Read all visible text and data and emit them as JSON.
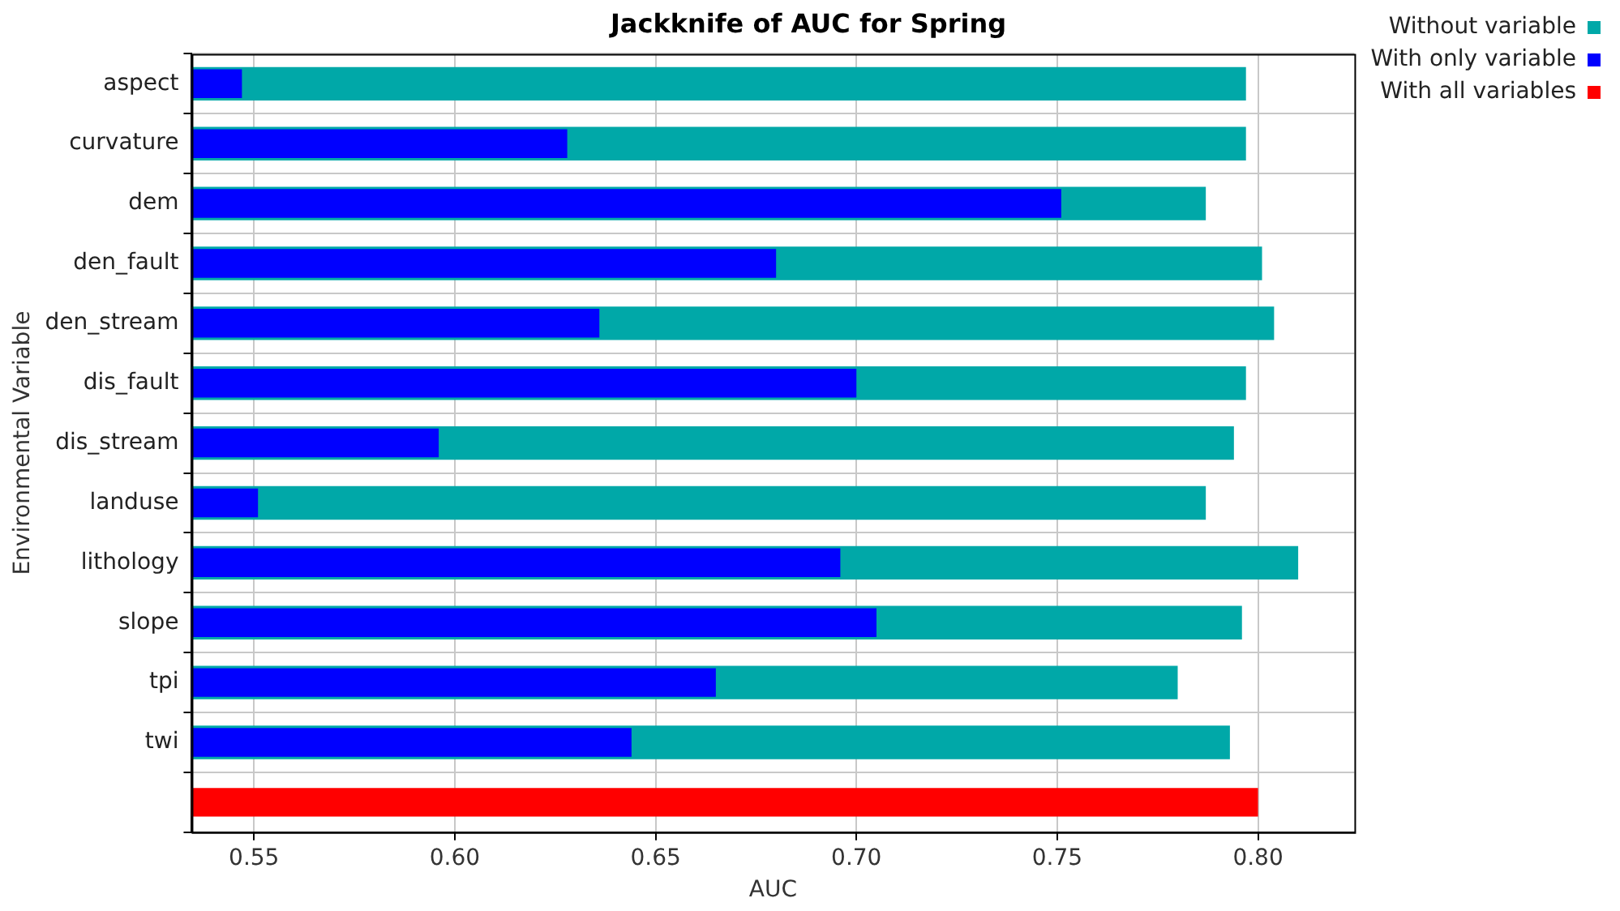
{
  "chart_data": {
    "type": "bar",
    "orientation": "horizontal",
    "title": "Jackknife of AUC for Spring",
    "xlabel": "AUC",
    "ylabel": "Environmental Variable",
    "categories": [
      "aspect",
      "curvature",
      "dem",
      "den_fault",
      "den_stream",
      "dis_fault",
      "dis_stream",
      "landuse",
      "lithology",
      "slope",
      "tpi",
      "twi",
      null
    ],
    "series": [
      {
        "name": "Without variable",
        "color": "#00a8a8",
        "values": [
          0.797,
          0.797,
          0.787,
          0.801,
          0.804,
          0.797,
          0.794,
          0.787,
          0.81,
          0.796,
          0.78,
          0.793,
          null
        ]
      },
      {
        "name": "With only variable",
        "color": "#0000ff",
        "values": [
          0.547,
          0.628,
          0.751,
          0.68,
          0.636,
          0.7,
          0.596,
          0.551,
          0.696,
          0.705,
          0.665,
          0.644,
          null
        ]
      },
      {
        "name": "With all variables",
        "color": "#ff0000",
        "values": [
          null,
          null,
          null,
          null,
          null,
          null,
          null,
          null,
          null,
          null,
          null,
          null,
          0.8
        ]
      }
    ],
    "xlim": [
      0.5345,
      0.824
    ],
    "xticks": [
      {
        "value": 0.55,
        "label": "0.55"
      },
      {
        "value": 0.6,
        "label": "0.60"
      },
      {
        "value": 0.65,
        "label": "0.65"
      },
      {
        "value": 0.7,
        "label": "0.70"
      },
      {
        "value": 0.75,
        "label": "0.75"
      },
      {
        "value": 0.8,
        "label": "0.80"
      }
    ],
    "grid": true,
    "legend": "top right"
  }
}
